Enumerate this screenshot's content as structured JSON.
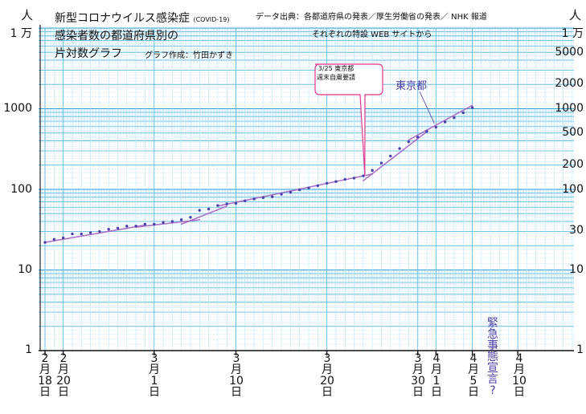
{
  "header": {
    "title_line1": "新型コロナウイルス感染症",
    "title_small": "(COVID-19)",
    "title_line2": "感染者数の都道府県別の",
    "title_line3": "片対数グラフ",
    "author": "グラフ作成：竹田かずき",
    "source_line1": "データ出典：各都道府県の発表／厚生労働省の発表／ NHK 報道",
    "source_line2": "それぞれの特設 WEB サイトから"
  },
  "axis_unit_left": "人",
  "axis_unit_right": "人",
  "y_ticks_left": [
    "1 万",
    "1000",
    "100",
    "10",
    "1"
  ],
  "y_ticks_right": [
    "1 万",
    "5000",
    "2000",
    "1000",
    "500",
    "200",
    "100",
    "30",
    "10",
    "1"
  ],
  "x_ticks": [
    "2\n月\n18\n日",
    "2\n月\n20\n日",
    "3\n月\n1\n日",
    "3\n月\n10\n日",
    "3\n月\n20\n日",
    "3\n月\n30\n日",
    "4\n月\n1\n日",
    "4\n月\n5\n日",
    "4\n月\n10\n日"
  ],
  "annotations": {
    "weekend_note": "3/25 東京都\n週末自粛要請",
    "tokyo_label": "東京都",
    "emergency_note": "緊\n急\n事\n態\n宣\n言\n?"
  },
  "chart_data": {
    "type": "scatter",
    "y_scale": "log",
    "ylim": [
      1,
      10000
    ],
    "xlim": [
      "2020-02-17",
      "2020-04-16"
    ],
    "ylabel": "人",
    "grid": true,
    "x_ticks": [
      "2020-02-18",
      "2020-02-20",
      "2020-03-01",
      "2020-03-10",
      "2020-03-20",
      "2020-03-30",
      "2020-04-01",
      "2020-04-05",
      "2020-04-10"
    ],
    "series": [
      {
        "name": "東京都",
        "color": "#4b3fa8",
        "points": [
          {
            "x": "2020-02-18",
            "y": 22
          },
          {
            "x": "2020-02-19",
            "y": 24
          },
          {
            "x": "2020-02-20",
            "y": 25
          },
          {
            "x": "2020-02-21",
            "y": 28
          },
          {
            "x": "2020-02-22",
            "y": 28
          },
          {
            "x": "2020-02-23",
            "y": 29
          },
          {
            "x": "2020-02-24",
            "y": 30
          },
          {
            "x": "2020-02-25",
            "y": 32
          },
          {
            "x": "2020-02-26",
            "y": 33
          },
          {
            "x": "2020-02-27",
            "y": 35
          },
          {
            "x": "2020-02-28",
            "y": 35
          },
          {
            "x": "2020-02-29",
            "y": 37
          },
          {
            "x": "2020-03-01",
            "y": 37
          },
          {
            "x": "2020-03-02",
            "y": 39
          },
          {
            "x": "2020-03-03",
            "y": 40
          },
          {
            "x": "2020-03-04",
            "y": 42
          },
          {
            "x": "2020-03-05",
            "y": 45
          },
          {
            "x": "2020-03-06",
            "y": 55
          },
          {
            "x": "2020-03-07",
            "y": 57
          },
          {
            "x": "2020-03-08",
            "y": 63
          },
          {
            "x": "2020-03-09",
            "y": 66
          },
          {
            "x": "2020-03-10",
            "y": 67
          },
          {
            "x": "2020-03-11",
            "y": 72
          },
          {
            "x": "2020-03-12",
            "y": 76
          },
          {
            "x": "2020-03-13",
            "y": 79
          },
          {
            "x": "2020-03-14",
            "y": 81
          },
          {
            "x": "2020-03-15",
            "y": 87
          },
          {
            "x": "2020-03-16",
            "y": 92
          },
          {
            "x": "2020-03-17",
            "y": 99
          },
          {
            "x": "2020-03-18",
            "y": 104
          },
          {
            "x": "2020-03-19",
            "y": 111
          },
          {
            "x": "2020-03-20",
            "y": 119
          },
          {
            "x": "2020-03-21",
            "y": 125
          },
          {
            "x": "2020-03-22",
            "y": 133
          },
          {
            "x": "2020-03-23",
            "y": 138
          },
          {
            "x": "2020-03-24",
            "y": 147
          },
          {
            "x": "2020-03-25",
            "y": 172
          },
          {
            "x": "2020-03-26",
            "y": 212
          },
          {
            "x": "2020-03-27",
            "y": 259
          },
          {
            "x": "2020-03-28",
            "y": 321
          },
          {
            "x": "2020-03-29",
            "y": 389
          },
          {
            "x": "2020-03-30",
            "y": 444
          },
          {
            "x": "2020-03-31",
            "y": 522
          },
          {
            "x": "2020-04-01",
            "y": 590
          },
          {
            "x": "2020-04-02",
            "y": 685
          },
          {
            "x": "2020-04-03",
            "y": 775
          },
          {
            "x": "2020-04-04",
            "y": 891
          },
          {
            "x": "2020-04-05",
            "y": 1034
          }
        ],
        "trend_lines": [
          {
            "x1": "2020-02-18",
            "y1": 22,
            "x2": "2020-02-29",
            "y2": 36
          },
          {
            "x1": "2020-02-28",
            "y1": 34,
            "x2": "2020-03-06",
            "y2": 42
          },
          {
            "x1": "2020-03-04",
            "y1": 37,
            "x2": "2020-03-09",
            "y2": 62
          },
          {
            "x1": "2020-03-08",
            "y1": 62,
            "x2": "2020-03-25",
            "y2": 155
          },
          {
            "x1": "2020-03-24",
            "y1": 128,
            "x2": "2020-03-31",
            "y2": 520
          },
          {
            "x1": "2020-03-29",
            "y1": 410,
            "x2": "2020-04-05",
            "y2": 1100
          }
        ]
      }
    ]
  }
}
